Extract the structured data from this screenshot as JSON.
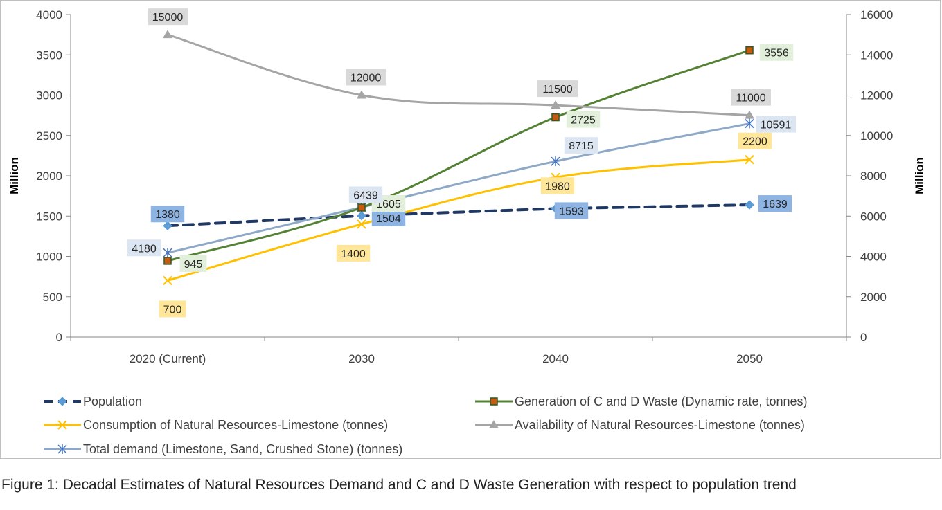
{
  "chart_data": {
    "type": "line",
    "categories": [
      "2020 (Current)",
      "2030",
      "2040",
      "2050"
    ],
    "ylabel": "Million",
    "y2label": "Million",
    "ylim": [
      0,
      4000
    ],
    "y2lim": [
      0,
      16000
    ],
    "yticks": [
      "0",
      "500",
      "1000",
      "1500",
      "2000",
      "2500",
      "3000",
      "3500",
      "4000"
    ],
    "y2ticks": [
      "0",
      "2000",
      "4000",
      "6000",
      "8000",
      "10000",
      "12000",
      "14000",
      "16000"
    ],
    "grid": false,
    "legend_position": "bottom",
    "series": [
      {
        "name": "Population",
        "axis": "left",
        "values": [
          1380,
          1504,
          1593,
          1639
        ],
        "labels": [
          "1380",
          "1504",
          "1593",
          "1639"
        ],
        "color": "#1f3864",
        "marker_color": "#5b9bd5",
        "label_bg": "#8eb4e3",
        "style": "dashed",
        "marker": "diamond"
      },
      {
        "name": "Generation of C and D Waste (Dynamic rate, tonnes)",
        "axis": "left",
        "values": [
          945,
          1605,
          2725,
          3556
        ],
        "labels": [
          "945",
          "1605",
          "2725",
          "3556"
        ],
        "color": "#548235",
        "marker_color": "#c55a11",
        "label_bg": "#e2efda",
        "style": "solid",
        "marker": "square"
      },
      {
        "name": "Consumption of Natural Resources-Limestone (tonnes)",
        "axis": "left",
        "values": [
          700,
          1400,
          1980,
          2200
        ],
        "labels": [
          "700",
          "1400",
          "1980",
          "2200"
        ],
        "color": "#ffc000",
        "marker_color": "#ffc000",
        "label_bg": "#ffe699",
        "style": "solid",
        "marker": "x"
      },
      {
        "name": "Availability of Natural Resources-Limestone (tonnes)",
        "axis": "right",
        "values": [
          15000,
          12000,
          11500,
          11000
        ],
        "labels": [
          "15000",
          "12000",
          "11500",
          "11000"
        ],
        "color": "#a5a5a5",
        "marker_color": "#a5a5a5",
        "label_bg": "#d9d9d9",
        "style": "solid",
        "marker": "triangle"
      },
      {
        "name": "Total demand (Limestone, Sand, Crushed Stone) (tonnes)",
        "axis": "right",
        "values": [
          4180,
          6439,
          8715,
          10591
        ],
        "labels": [
          "4180",
          "6439",
          "8715",
          "10591"
        ],
        "color": "#8ea9c8",
        "marker_color": "#4472c4",
        "label_bg": "#dce6f2",
        "style": "solid",
        "marker": "star"
      }
    ]
  },
  "caption": "Figure 1: Decadal Estimates of Natural Resources Demand and C and D Waste Generation with respect to population trend"
}
